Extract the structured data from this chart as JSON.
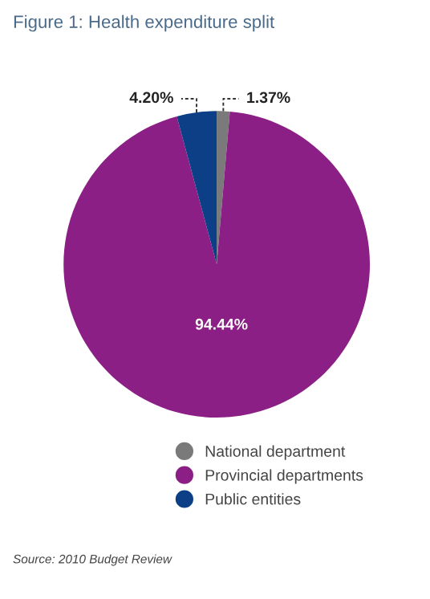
{
  "chart_data": {
    "type": "pie",
    "title": "Figure 1: Health expenditure split",
    "categories": [
      "National department",
      "Provincial departments",
      "Public entities"
    ],
    "values": [
      1.37,
      94.44,
      4.2
    ],
    "value_labels": [
      "1.37%",
      "94.44%",
      "4.20%"
    ],
    "colors": [
      "#7a7a7a",
      "#8b1f85",
      "#0d3f86"
    ],
    "legend": "bottom",
    "annotations": [
      "Source: 2010 Budget Review"
    ]
  }
}
